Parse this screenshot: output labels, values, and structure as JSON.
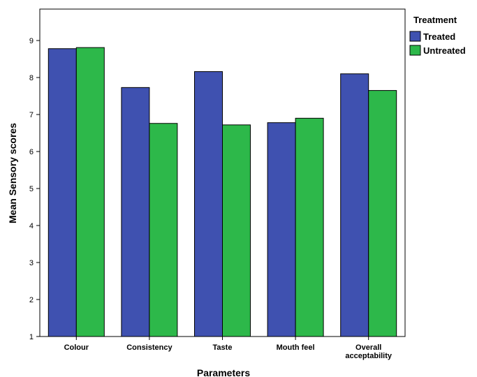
{
  "chart_data": {
    "type": "bar",
    "title": "",
    "xlabel": "Parameters",
    "ylabel": "Mean Sensory scores",
    "ylim": [
      1,
      9.85
    ],
    "yticks": [
      1,
      2,
      3,
      4,
      5,
      6,
      7,
      8,
      9
    ],
    "categories": [
      [
        "Colour"
      ],
      [
        "Consistency"
      ],
      [
        "Taste"
      ],
      [
        "Mouth feel"
      ],
      [
        "Overall",
        "acceptability"
      ]
    ],
    "series": [
      {
        "name": "Treated",
        "color": "#3f51b0",
        "values": [
          8.78,
          7.73,
          8.16,
          6.78,
          8.1
        ]
      },
      {
        "name": "Untreated",
        "color": "#2db84a",
        "values": [
          8.81,
          6.76,
          6.72,
          6.9,
          7.65
        ]
      }
    ],
    "legend": {
      "title": "Treatment",
      "position": "right"
    },
    "grid": false
  }
}
